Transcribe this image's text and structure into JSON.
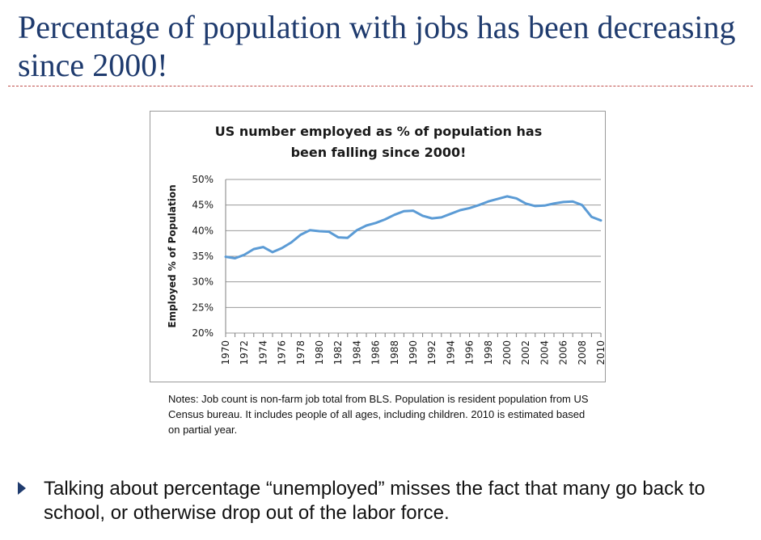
{
  "slide": {
    "title": "Percentage of population with jobs has been decreasing since 2000!",
    "notes": "Notes: Job count is non-farm job total from BLS. Population is resident population from US Census bureau. It includes people of all ages, including children. 2010 is estimated based on partial year.",
    "bullet": "Talking about percentage “unemployed” misses the fact that many go back to school, or otherwise drop out of the labor force.",
    "accent_color": "#1f3b6e",
    "rule_color": "#c0504d"
  },
  "chart_data": {
    "type": "line",
    "title_lines": [
      "US number employed as % of population has",
      "been falling since 2000!"
    ],
    "xlabel": "",
    "ylabel": "Employed % of Population",
    "ylim": [
      20,
      50
    ],
    "yticks": [
      20,
      25,
      30,
      35,
      40,
      45,
      50
    ],
    "ytick_labels": [
      "20%",
      "25%",
      "30%",
      "35%",
      "40%",
      "45%",
      "50%"
    ],
    "xtick_labels": [
      "1970",
      "1972",
      "1974",
      "1976",
      "1978",
      "1980",
      "1982",
      "1984",
      "1986",
      "1988",
      "1990",
      "1992",
      "1994",
      "1996",
      "1998",
      "2000",
      "2002",
      "2004",
      "2006",
      "2008",
      "2010"
    ],
    "grid": true,
    "legend": "none",
    "line_color": "#5b9bd5",
    "x": [
      1970,
      1971,
      1972,
      1973,
      1974,
      1975,
      1976,
      1977,
      1978,
      1979,
      1980,
      1981,
      1982,
      1983,
      1984,
      1985,
      1986,
      1987,
      1988,
      1989,
      1990,
      1991,
      1992,
      1993,
      1994,
      1995,
      1996,
      1997,
      1998,
      1999,
      2000,
      2001,
      2002,
      2003,
      2004,
      2005,
      2006,
      2007,
      2008,
      2009,
      2010
    ],
    "series": [
      {
        "values": [
          34.9,
          34.6,
          35.3,
          36.4,
          36.8,
          35.8,
          36.6,
          37.7,
          39.2,
          40.1,
          39.9,
          39.8,
          38.7,
          38.6,
          40.1,
          41.0,
          41.5,
          42.2,
          43.1,
          43.8,
          43.9,
          42.9,
          42.4,
          42.6,
          43.3,
          44.0,
          44.4,
          45.0,
          45.7,
          46.2,
          46.7,
          46.3,
          45.3,
          44.8,
          44.9,
          45.3,
          45.6,
          45.7,
          45.0,
          42.7,
          42.0
        ]
      }
    ]
  }
}
